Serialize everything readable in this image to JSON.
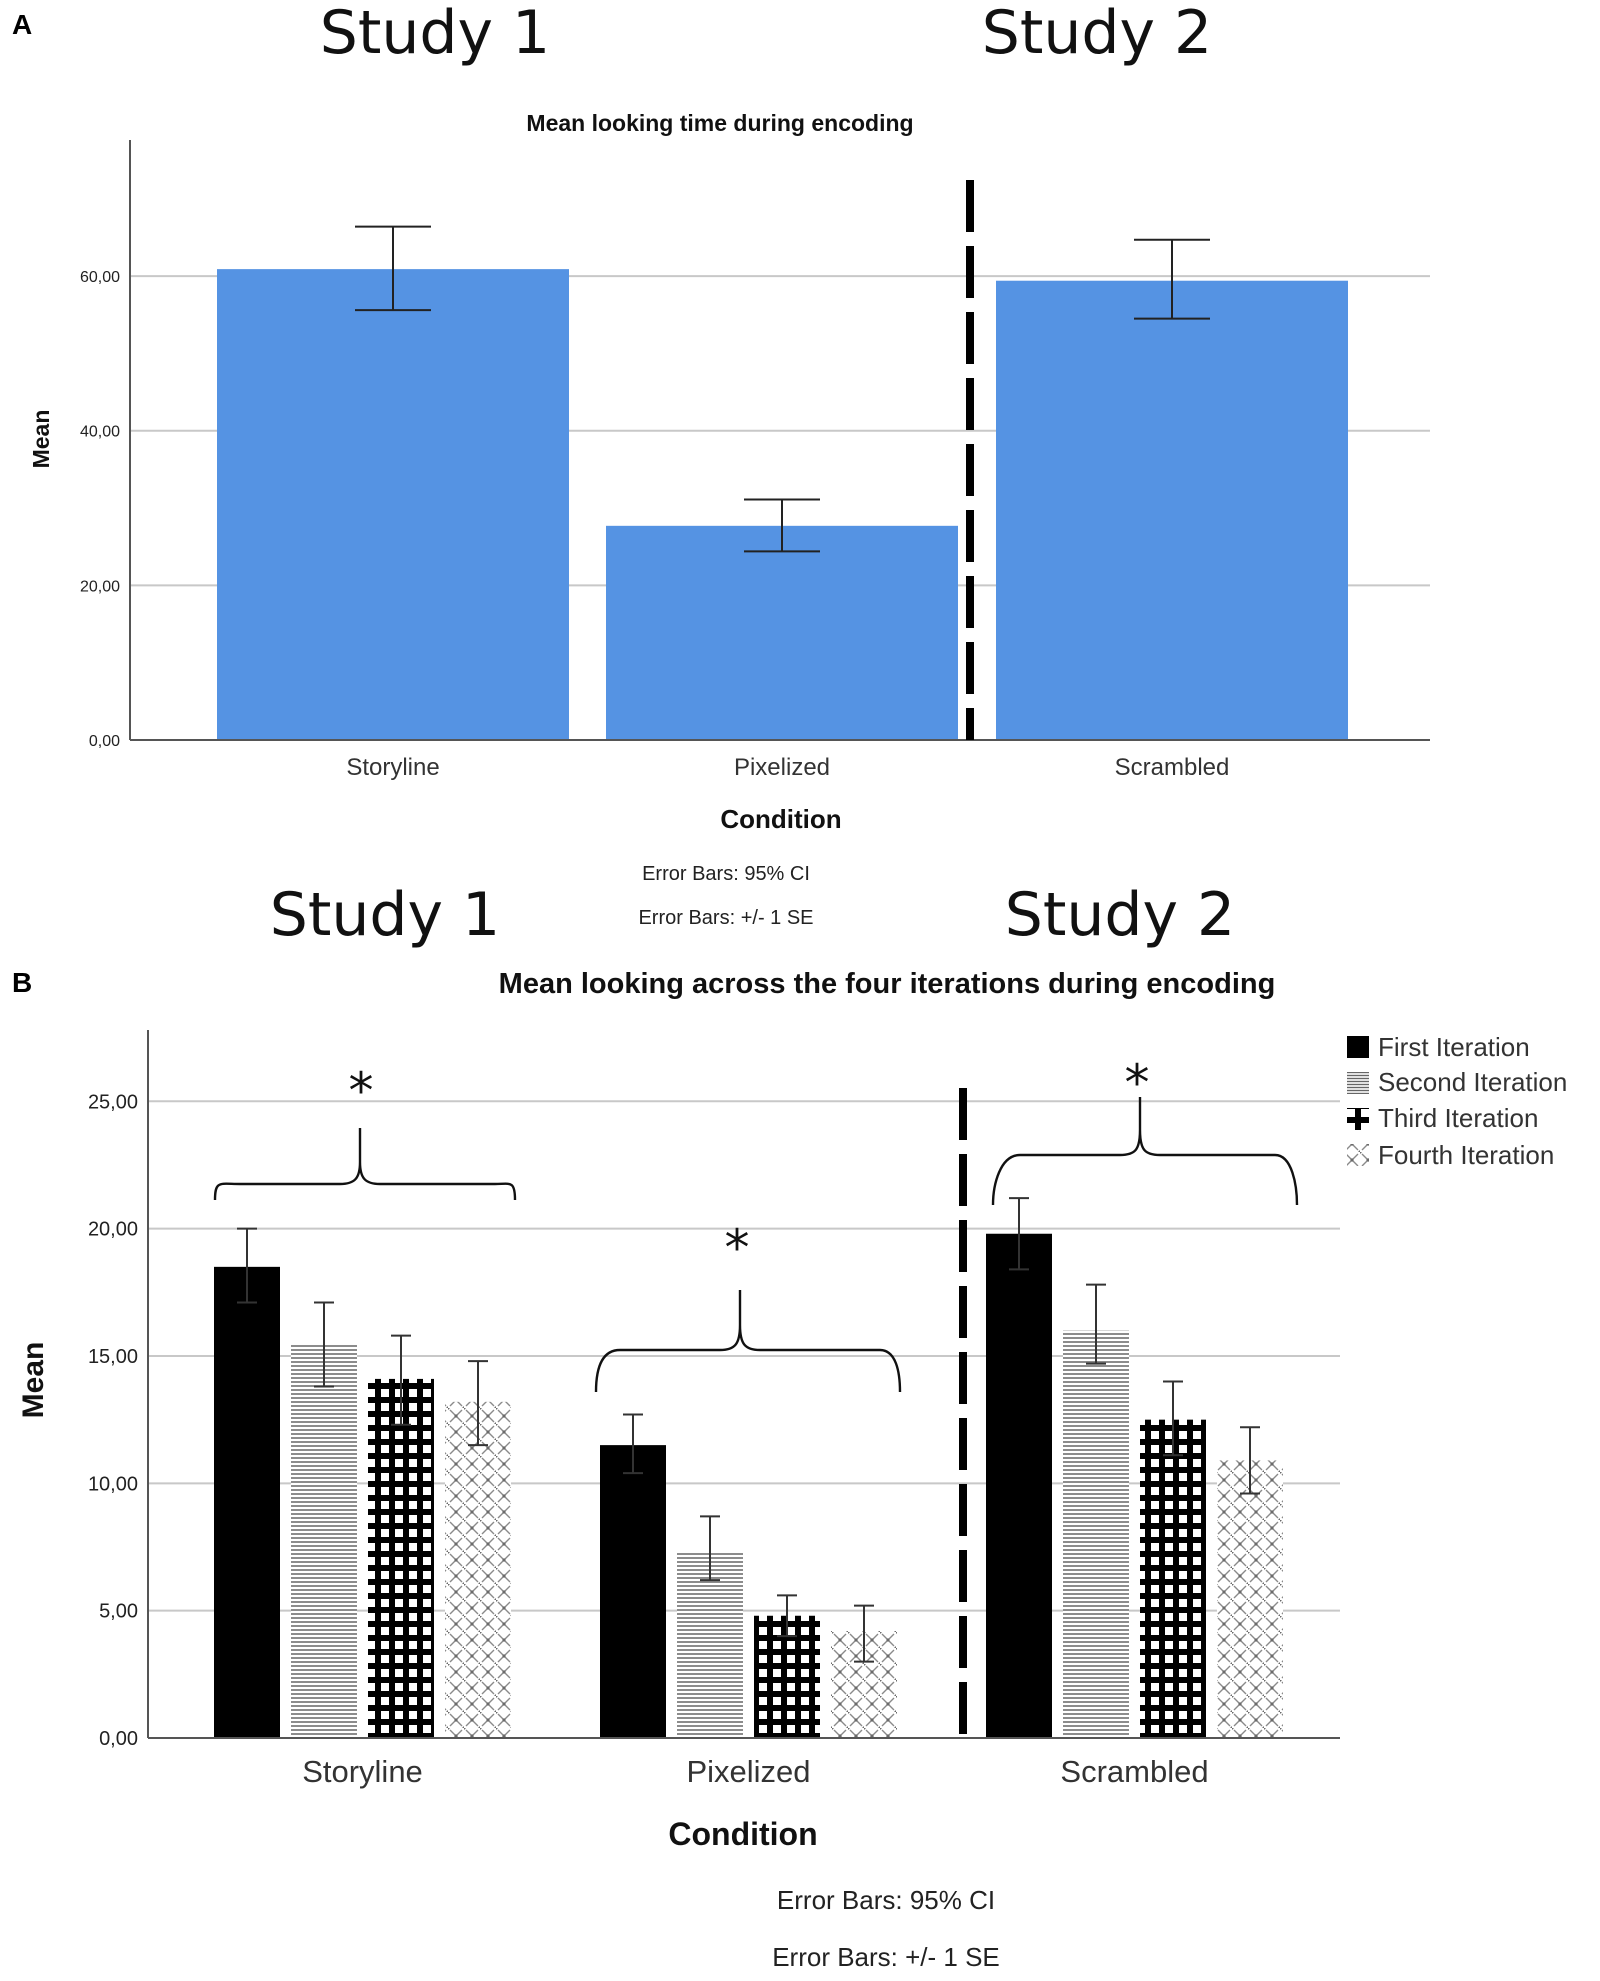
{
  "panel_a_letter": "A",
  "panel_b_letter": "B",
  "chart_data": [
    {
      "type": "bar",
      "title": "Mean looking time during encoding",
      "study_labels": [
        "Study 1",
        "Study 2"
      ],
      "categories": [
        "Storyline",
        "Pixelized",
        "Scrambled"
      ],
      "values": [
        60.9,
        27.7,
        59.4
      ],
      "error_low": [
        55.6,
        24.4,
        54.5
      ],
      "error_high": [
        66.4,
        31.1,
        64.7
      ],
      "xlabel": "Condition",
      "ylabel": "Mean",
      "ylim": [
        0,
        77.6
      ],
      "yticks": [
        "0,00",
        "20,00",
        "40,00",
        "60,00"
      ],
      "ytick_values": [
        0,
        20,
        40,
        60
      ],
      "color": "#5593e3",
      "notes": [
        "Error Bars: 95% CI",
        "Error Bars: +/- 1 SE"
      ]
    },
    {
      "type": "bar",
      "title": "Mean looking across the four iterations during encoding",
      "study_labels": [
        "Study 1",
        "Study 2"
      ],
      "categories": [
        "Storyline",
        "Pixelized",
        "Scrambled"
      ],
      "series": [
        {
          "name": "First Iteration",
          "pattern": "solid",
          "values": [
            18.5,
            11.5,
            19.8
          ],
          "error_low": [
            17.1,
            10.4,
            18.4
          ],
          "error_high": [
            20.0,
            12.7,
            21.2
          ]
        },
        {
          "name": "Second Iteration",
          "pattern": "horizontal-lines",
          "values": [
            15.5,
            7.3,
            16.0
          ],
          "error_low": [
            13.8,
            6.2,
            14.7
          ],
          "error_high": [
            17.1,
            8.7,
            17.8
          ]
        },
        {
          "name": "Third Iteration",
          "pattern": "checker",
          "values": [
            14.1,
            4.8,
            12.5
          ],
          "error_low": [
            12.3,
            4.0,
            11.1
          ],
          "error_high": [
            15.8,
            5.6,
            14.0
          ]
        },
        {
          "name": "Fourth Iteration",
          "pattern": "cross-dots",
          "values": [
            13.2,
            4.2,
            10.9
          ],
          "error_low": [
            11.5,
            3.0,
            9.6
          ],
          "error_high": [
            14.8,
            5.2,
            12.2
          ]
        }
      ],
      "significance": [
        "*",
        "*",
        "*"
      ],
      "xlabel": "Condition",
      "ylabel": "Mean",
      "ylim": [
        0,
        27.8
      ],
      "yticks": [
        "0,00",
        "5,00",
        "10,00",
        "15,00",
        "20,00",
        "25,00"
      ],
      "ytick_values": [
        0,
        5,
        10,
        15,
        20,
        25
      ],
      "notes": [
        "Error Bars: 95% CI",
        "Error Bars: +/- 1 SE"
      ]
    }
  ]
}
